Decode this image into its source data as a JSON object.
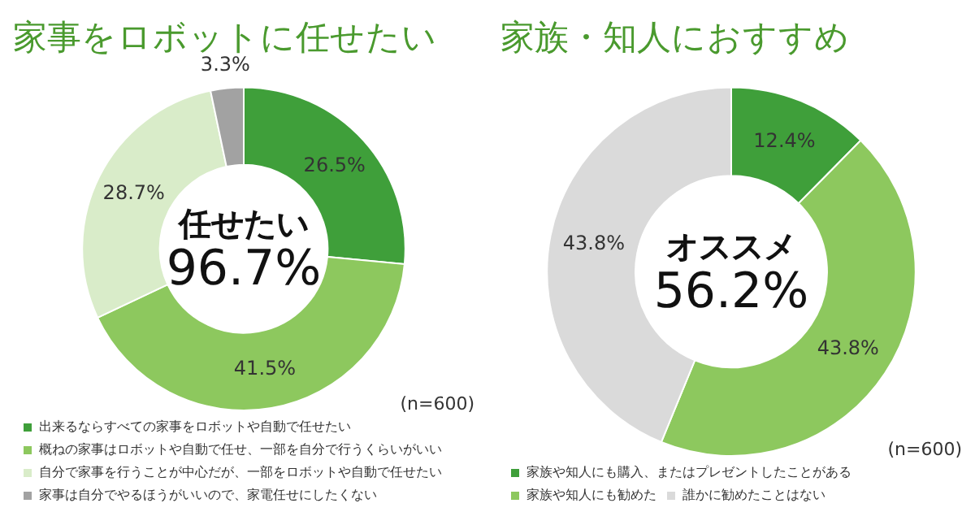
{
  "chart_data": [
    {
      "type": "donut",
      "title": "家事をロボットに任せたい",
      "categories": [
        "出来るならすべての家事をロボットや自動で任せたい",
        "概ねの家事はロボットや自動で任せ、一部を自分で行うくらいがいい",
        "自分で家事を行うことが中心だが、一部をロボットや自動で任せたい",
        "家事は自分でやるほうがいいので、家電任せにしたくない"
      ],
      "values": [
        26.5,
        41.5,
        28.7,
        3.3
      ],
      "colors": [
        "#3f9f3a",
        "#8dc85e",
        "#d9ecc9",
        "#a2a2a2"
      ],
      "value_labels": [
        "26.5%",
        "41.5%",
        "28.7%",
        "3.3%"
      ],
      "annotations": [
        "任せたい",
        "96.7%",
        "(n=600)"
      ],
      "legend": "bottom"
    },
    {
      "type": "donut",
      "title": "家族・知人におすすめ",
      "categories": [
        "家族や知人にも購入、またはプレゼントしたことがある",
        "家族や知人にも勧めた",
        "誰かに勧めたことはない"
      ],
      "values": [
        12.4,
        43.8,
        43.8
      ],
      "colors": [
        "#3f9f3a",
        "#8dc85e",
        "#dadada"
      ],
      "value_labels": [
        "12.4%",
        "43.8%",
        "43.8%"
      ],
      "annotations": [
        "オススメ",
        "56.2%",
        "(n=600)"
      ],
      "legend": "bottom"
    }
  ]
}
